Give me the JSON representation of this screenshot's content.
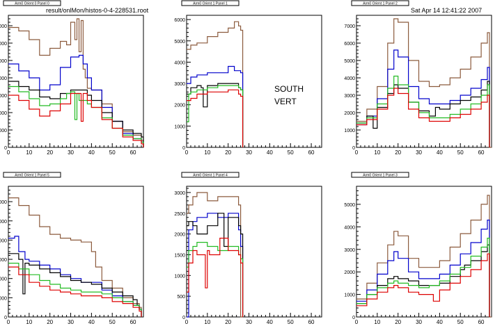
{
  "header": {
    "file_path": "result/onlMon/histos-0-4-228531.root",
    "date": "Sat Apr 14 12:41:22 2007"
  },
  "annotations": {
    "line1": "SOUTH",
    "line2": "VERT"
  },
  "colors": {
    "brown": "#8b5a3c",
    "blue": "#0000cc",
    "black": "#000000",
    "green": "#22bb22",
    "red": "#dd0000"
  },
  "chart_data": [
    {
      "type": "line",
      "title": "Arm0 Orient 0 Panel 0",
      "xlim": [
        0,
        65
      ],
      "ylim": [
        0,
        7600
      ],
      "xticks": [
        0,
        10,
        20,
        30,
        40,
        50,
        60
      ],
      "yticks": [
        1000,
        2000,
        3000,
        4000,
        5000,
        6000,
        7000
      ],
      "series": [
        {
          "color": "brown",
          "x": [
            0,
            5,
            10,
            15,
            20,
            25,
            28,
            30,
            32,
            33,
            34,
            35,
            36,
            37,
            38,
            40,
            45,
            50,
            55,
            60,
            64
          ],
          "y": [
            6900,
            6700,
            6200,
            5300,
            5700,
            6100,
            5900,
            7200,
            6200,
            7400,
            5500,
            7300,
            4500,
            4000,
            3400,
            3300,
            2500,
            1500,
            900,
            700,
            400
          ]
        },
        {
          "color": "blue",
          "x": [
            0,
            5,
            10,
            15,
            20,
            25,
            30,
            34,
            36,
            38,
            40,
            45,
            50,
            55,
            60,
            64
          ],
          "y": [
            4800,
            4400,
            4000,
            3300,
            3600,
            4600,
            5200,
            5300,
            4800,
            4000,
            3300,
            2300,
            1500,
            800,
            500,
            300
          ]
        },
        {
          "color": "black",
          "x": [
            0,
            5,
            10,
            15,
            20,
            25,
            30,
            35,
            38,
            40,
            45,
            50,
            55,
            60,
            64
          ],
          "y": [
            3800,
            3500,
            3300,
            2900,
            2800,
            3100,
            3300,
            3300,
            3000,
            2700,
            2000,
            1500,
            1000,
            800,
            600
          ]
        },
        {
          "color": "green",
          "x": [
            0,
            5,
            10,
            15,
            20,
            25,
            28,
            30,
            32,
            33,
            34,
            36,
            38,
            40,
            45,
            50,
            55,
            60,
            64
          ],
          "y": [
            3500,
            3200,
            2800,
            2400,
            2500,
            2800,
            3100,
            3200,
            1600,
            3100,
            2700,
            2700,
            2500,
            2300,
            1700,
            1100,
            700,
            500,
            300
          ]
        },
        {
          "color": "red",
          "x": [
            0,
            5,
            10,
            15,
            20,
            25,
            30,
            34,
            35,
            36,
            38,
            40,
            45,
            50,
            55,
            60,
            64
          ],
          "y": [
            3000,
            2700,
            2200,
            1800,
            2100,
            2500,
            3100,
            3100,
            1500,
            3100,
            2700,
            2300,
            1600,
            1100,
            600,
            400,
            200
          ]
        }
      ]
    },
    {
      "type": "line",
      "title": "Arm0 Orient 1 Panel 1",
      "xlim": [
        0,
        65
      ],
      "ylim": [
        0,
        6200
      ],
      "xticks": [
        0,
        10,
        20,
        30,
        40,
        50,
        60
      ],
      "yticks": [
        1000,
        2000,
        3000,
        4000,
        5000,
        6000
      ],
      "series": [
        {
          "color": "brown",
          "x": [
            0,
            2,
            5,
            10,
            15,
            20,
            23,
            25,
            26
          ],
          "y": [
            4600,
            4800,
            4900,
            5200,
            5400,
            5600,
            5900,
            5700,
            5500
          ]
        },
        {
          "color": "blue",
          "x": [
            0,
            2,
            5,
            10,
            15,
            20,
            23,
            25,
            26
          ],
          "y": [
            3000,
            3300,
            3400,
            3500,
            3500,
            3800,
            3600,
            3600,
            3500
          ]
        },
        {
          "color": "black",
          "x": [
            0,
            2,
            5,
            7,
            8,
            10,
            15,
            20,
            25,
            26
          ],
          "y": [
            2500,
            2800,
            2900,
            2800,
            1900,
            2900,
            3000,
            3000,
            2800,
            2700
          ]
        },
        {
          "color": "green",
          "x": [
            0,
            1,
            2,
            5,
            10,
            15,
            20,
            25,
            26
          ],
          "y": [
            1200,
            2500,
            2600,
            2700,
            2800,
            2900,
            2900,
            2800,
            2700
          ]
        },
        {
          "color": "red",
          "x": [
            0,
            2,
            5,
            10,
            15,
            20,
            25,
            26
          ],
          "y": [
            2200,
            2300,
            2500,
            2600,
            2600,
            2700,
            2500,
            2400
          ]
        }
      ]
    },
    {
      "type": "line",
      "title": "Arm0 Orient 1 Panel 2",
      "xlim": [
        0,
        65
      ],
      "ylim": [
        0,
        7600
      ],
      "xticks": [
        0,
        10,
        20,
        30,
        40,
        50,
        60
      ],
      "yticks": [
        1000,
        2000,
        3000,
        4000,
        5000,
        6000,
        7000
      ],
      "series": [
        {
          "color": "brown",
          "x": [
            0,
            5,
            10,
            15,
            18,
            20,
            25,
            30,
            35,
            40,
            45,
            50,
            55,
            60,
            63,
            64
          ],
          "y": [
            1500,
            2200,
            3500,
            6000,
            7400,
            7200,
            5000,
            3800,
            3500,
            3600,
            4000,
            4500,
            5200,
            6000,
            6600,
            0
          ]
        },
        {
          "color": "blue",
          "x": [
            0,
            5,
            10,
            15,
            18,
            20,
            25,
            30,
            35,
            40,
            45,
            50,
            55,
            60,
            63
          ],
          "y": [
            1300,
            1800,
            2800,
            4500,
            5600,
            5200,
            3500,
            2800,
            2500,
            2500,
            2700,
            3000,
            3400,
            3900,
            4600
          ]
        },
        {
          "color": "black",
          "x": [
            0,
            5,
            8,
            10,
            15,
            18,
            20,
            25,
            30,
            35,
            38,
            40,
            45,
            50,
            55,
            60,
            63
          ],
          "y": [
            1400,
            1800,
            1100,
            2300,
            3100,
            3600,
            3400,
            2600,
            2100,
            1800,
            2300,
            2200,
            2500,
            2700,
            2900,
            3300,
            3800
          ]
        },
        {
          "color": "green",
          "x": [
            0,
            5,
            10,
            15,
            18,
            20,
            25,
            30,
            35,
            40,
            45,
            50,
            55,
            60,
            63
          ],
          "y": [
            1400,
            1700,
            2500,
            3400,
            4100,
            3600,
            2600,
            2000,
            1700,
            1700,
            1900,
            2200,
            2500,
            3000,
            3600
          ]
        },
        {
          "color": "red",
          "x": [
            0,
            5,
            10,
            15,
            18,
            20,
            25,
            30,
            35,
            40,
            45,
            50,
            55,
            60,
            63
          ],
          "y": [
            1300,
            1600,
            2200,
            3000,
            3400,
            3100,
            2200,
            1700,
            1500,
            1500,
            1700,
            1900,
            2200,
            2600,
            3000
          ]
        }
      ]
    },
    {
      "type": "line",
      "title": "Arm0 Orient 1 Panel 5",
      "xlim": [
        0,
        65
      ],
      "ylim": [
        0,
        6800
      ],
      "xticks": [
        0,
        10,
        20,
        30,
        40,
        50,
        60
      ],
      "yticks": [
        1000,
        2000,
        3000,
        4000,
        5000,
        6000
      ],
      "series": [
        {
          "color": "brown",
          "x": [
            0,
            5,
            10,
            15,
            20,
            25,
            30,
            35,
            40,
            42,
            45,
            50,
            55,
            60,
            63
          ],
          "y": [
            6200,
            5800,
            5300,
            4700,
            4300,
            4100,
            4000,
            3900,
            3400,
            2600,
            1900,
            1500,
            1000,
            700,
            500
          ]
        },
        {
          "color": "blue",
          "x": [
            0,
            3,
            5,
            8,
            10,
            15,
            20,
            25,
            30,
            35,
            40,
            45,
            50,
            55,
            60,
            63
          ],
          "y": [
            4100,
            4200,
            3400,
            3000,
            2900,
            2700,
            2500,
            2200,
            2000,
            1800,
            1800,
            1400,
            1100,
            800,
            600,
            400
          ]
        },
        {
          "color": "black",
          "x": [
            0,
            5,
            7,
            8,
            10,
            15,
            20,
            25,
            30,
            35,
            40,
            45,
            50,
            55,
            60,
            62,
            63
          ],
          "y": [
            3300,
            3000,
            1200,
            2800,
            2700,
            2500,
            2300,
            2100,
            1900,
            1800,
            1700,
            1500,
            1300,
            1100,
            900,
            600,
            400
          ]
        },
        {
          "color": "green",
          "x": [
            0,
            5,
            10,
            15,
            20,
            25,
            30,
            35,
            40,
            45,
            50,
            55,
            60,
            63
          ],
          "y": [
            2800,
            2500,
            2200,
            1900,
            1700,
            1500,
            1400,
            1300,
            1300,
            1200,
            1000,
            800,
            600,
            400
          ]
        },
        {
          "color": "red",
          "x": [
            0,
            5,
            10,
            15,
            20,
            25,
            30,
            35,
            40,
            45,
            50,
            55,
            60,
            63
          ],
          "y": [
            2600,
            2200,
            1800,
            1600,
            1400,
            1300,
            1200,
            1100,
            1100,
            1000,
            800,
            700,
            500,
            300
          ]
        }
      ]
    },
    {
      "type": "line",
      "title": "Arm0 Orient 1 Panel 4",
      "xlim": [
        0,
        65
      ],
      "ylim": [
        0,
        3150
      ],
      "xticks": [
        0,
        10,
        20,
        30,
        40,
        50,
        60
      ],
      "yticks": [
        500,
        1000,
        1500,
        2000,
        2500,
        3000
      ],
      "series": [
        {
          "color": "brown",
          "x": [
            0,
            1,
            3,
            5,
            10,
            15,
            20,
            25,
            26
          ],
          "y": [
            2500,
            2700,
            2900,
            3000,
            2800,
            2900,
            2900,
            2700,
            0
          ]
        },
        {
          "color": "blue",
          "x": [
            0,
            1,
            3,
            5,
            10,
            15,
            20,
            25,
            26
          ],
          "y": [
            0,
            2100,
            2300,
            2400,
            2500,
            2400,
            2500,
            2100,
            1700
          ]
        },
        {
          "color": "black",
          "x": [
            0,
            1,
            3,
            5,
            10,
            15,
            18,
            20,
            25,
            26
          ],
          "y": [
            2200,
            2300,
            2200,
            2000,
            2200,
            2500,
            1700,
            2400,
            2200,
            2000
          ]
        },
        {
          "color": "green",
          "x": [
            0,
            1,
            3,
            5,
            10,
            15,
            20,
            25,
            26
          ],
          "y": [
            1200,
            1600,
            1700,
            1800,
            1700,
            1600,
            1700,
            1500,
            1400
          ]
        },
        {
          "color": "red",
          "x": [
            0,
            1,
            3,
            5,
            9,
            10,
            11,
            15,
            16,
            20,
            25,
            26
          ],
          "y": [
            600,
            1300,
            1600,
            1500,
            700,
            1600,
            1500,
            1500,
            1900,
            1600,
            1500,
            1300
          ]
        }
      ]
    },
    {
      "type": "line",
      "title": "Arm0 Orient 1 Panel 3",
      "xlim": [
        0,
        65
      ],
      "ylim": [
        0,
        5800
      ],
      "xticks": [
        0,
        10,
        20,
        30,
        40,
        50,
        60
      ],
      "yticks": [
        1000,
        2000,
        3000,
        4000,
        5000
      ],
      "series": [
        {
          "color": "brown",
          "x": [
            0,
            5,
            10,
            15,
            18,
            20,
            25,
            30,
            35,
            40,
            45,
            50,
            55,
            60,
            63,
            64
          ],
          "y": [
            800,
            1500,
            2400,
            3200,
            3800,
            3600,
            2600,
            2200,
            2200,
            2500,
            3100,
            3700,
            4300,
            5000,
            5400,
            0
          ]
        },
        {
          "color": "blue",
          "x": [
            0,
            5,
            10,
            15,
            18,
            20,
            25,
            30,
            35,
            40,
            45,
            50,
            55,
            60,
            63
          ],
          "y": [
            700,
            1200,
            1900,
            2500,
            2900,
            2600,
            2000,
            1700,
            1700,
            1900,
            2300,
            2800,
            3300,
            3900,
            4300
          ]
        },
        {
          "color": "black",
          "x": [
            0,
            5,
            10,
            15,
            18,
            20,
            25,
            30,
            35,
            40,
            45,
            50,
            52,
            55,
            60,
            63
          ],
          "y": [
            600,
            1000,
            1400,
            1700,
            1800,
            1700,
            1600,
            1400,
            1400,
            1500,
            1800,
            2100,
            2300,
            2500,
            2900,
            3200
          ]
        },
        {
          "color": "green",
          "x": [
            0,
            5,
            10,
            15,
            18,
            20,
            25,
            30,
            35,
            40,
            45,
            50,
            55,
            60,
            63
          ],
          "y": [
            600,
            1000,
            1300,
            1500,
            1600,
            1500,
            1400,
            1300,
            1400,
            1600,
            1900,
            2200,
            2700,
            3100,
            3500
          ]
        },
        {
          "color": "red",
          "x": [
            0,
            5,
            10,
            15,
            18,
            20,
            25,
            30,
            35,
            37,
            40,
            45,
            50,
            55,
            60,
            63
          ],
          "y": [
            500,
            800,
            1100,
            1300,
            1400,
            1300,
            1100,
            1000,
            1000,
            700,
            1200,
            1500,
            1800,
            2100,
            2500,
            2800
          ]
        }
      ]
    }
  ]
}
